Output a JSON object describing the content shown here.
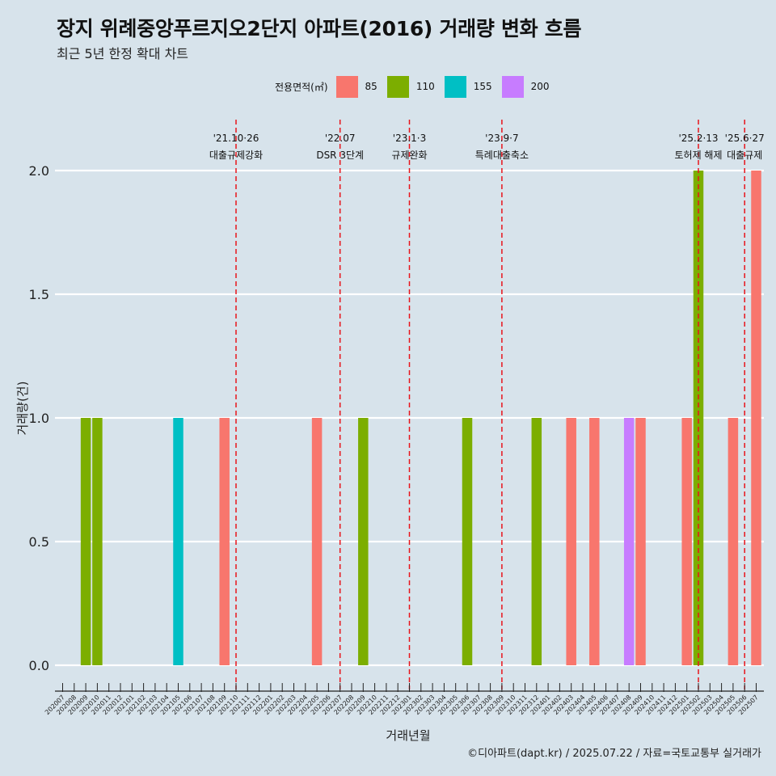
{
  "header": {
    "title": "장지 위례중앙푸르지오2단지 아파트(2016) 거래량 변화 흐름",
    "subtitle": "최근 5년 한정 확대 차트"
  },
  "legend": {
    "title": "전용면적(㎡)",
    "items": [
      {
        "label": "85",
        "color": "#f8766d"
      },
      {
        "label": "110",
        "color": "#7cae00"
      },
      {
        "label": "155",
        "color": "#00bfc4"
      },
      {
        "label": "200",
        "color": "#c77cff"
      }
    ]
  },
  "caption": "©디아파트(dapt.kr) / 2025.07.22 / 자료=국토교통부 실거래가",
  "chart_data": {
    "type": "bar",
    "xlabel": "거래년월",
    "ylabel": "거래량(건)",
    "ylim": [
      0,
      2
    ],
    "yticks": [
      "0.0",
      "0.5",
      "1.0",
      "1.5",
      "2.0"
    ],
    "grid": true,
    "legend_position": "top",
    "categories": [
      "202007",
      "202008",
      "202009",
      "202010",
      "202011",
      "202012",
      "202101",
      "202102",
      "202103",
      "202104",
      "202105",
      "202106",
      "202107",
      "202108",
      "202109",
      "202110",
      "202111",
      "202112",
      "202201",
      "202202",
      "202203",
      "202204",
      "202205",
      "202206",
      "202207",
      "202208",
      "202209",
      "202210",
      "202211",
      "202212",
      "202301",
      "202302",
      "202303",
      "202304",
      "202305",
      "202306",
      "202307",
      "202308",
      "202309",
      "202310",
      "202311",
      "202312",
      "202401",
      "202402",
      "202403",
      "202404",
      "202405",
      "202406",
      "202407",
      "202408",
      "202409",
      "202410",
      "202411",
      "202412",
      "202501",
      "202502",
      "202503",
      "202504",
      "202505",
      "202506",
      "202507"
    ],
    "bars": [
      {
        "month": "202009",
        "area": "110",
        "value": 1
      },
      {
        "month": "202010",
        "area": "110",
        "value": 1
      },
      {
        "month": "202105",
        "area": "155",
        "value": 1
      },
      {
        "month": "202109",
        "area": "85",
        "value": 1
      },
      {
        "month": "202205",
        "area": "85",
        "value": 1
      },
      {
        "month": "202209",
        "area": "110",
        "value": 1
      },
      {
        "month": "202306",
        "area": "110",
        "value": 1
      },
      {
        "month": "202312",
        "area": "110",
        "value": 1
      },
      {
        "month": "202403",
        "area": "85",
        "value": 1
      },
      {
        "month": "202405",
        "area": "85",
        "value": 1
      },
      {
        "month": "202408",
        "area": "200",
        "value": 1
      },
      {
        "month": "202409",
        "area": "85",
        "value": 1
      },
      {
        "month": "202501",
        "area": "85",
        "value": 1
      },
      {
        "month": "202502",
        "area": "110",
        "value": 2
      },
      {
        "month": "202505",
        "area": "85",
        "value": 1
      },
      {
        "month": "202507",
        "area": "85",
        "value": 2
      }
    ],
    "events": [
      {
        "month": "202110",
        "date": "'21.10·26",
        "label": "대출규제강화"
      },
      {
        "month": "202207",
        "date": "'22.07",
        "label": "DSR 3단계"
      },
      {
        "month": "202301",
        "date": "'23.1·3",
        "label": "규제완화"
      },
      {
        "month": "202309",
        "date": "'23.9·7",
        "label": "특례대출축소"
      },
      {
        "month": "202502",
        "date": "'25.2·13",
        "label": "토허제 해제"
      },
      {
        "month": "202506",
        "date": "'25.6·27",
        "label": "대출규제"
      }
    ]
  }
}
